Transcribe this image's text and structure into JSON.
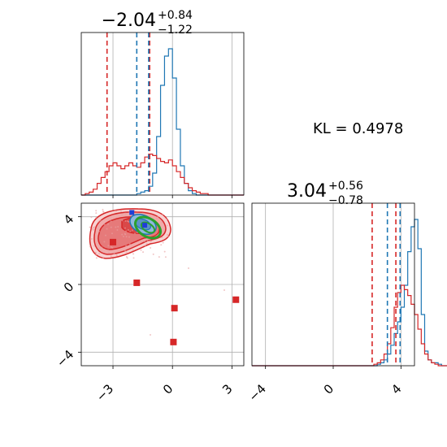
{
  "colors": {
    "blue": "#1f77b4",
    "red": "#d62728",
    "green": "#2ca02c",
    "frame": "#000000",
    "grid": "#b0b0b0"
  },
  "kl_label": "KL = 0.4978",
  "chart_data": [
    {
      "type": "histogram",
      "panel": "top-left",
      "title": {
        "main": "−2.04",
        "sup": "+0.84",
        "sub": "−1.22"
      },
      "xlim": [
        -4.6,
        3.6
      ],
      "grid": true,
      "bin_edges_start": -4.6,
      "bin_width": 0.2,
      "series": [
        {
          "name": "",
          "color": "blue",
          "values": [
            0,
            0,
            0,
            0,
            0,
            0,
            0,
            0,
            0,
            0,
            0,
            0,
            0,
            0,
            0.01,
            0.02,
            0.03,
            0.06,
            0.15,
            0.4,
            0.75,
            0.95,
            1.0,
            0.8,
            0.45,
            0.2,
            0.08,
            0.03,
            0.01,
            0,
            0,
            0,
            0,
            0,
            0,
            0,
            0,
            0,
            0,
            0,
            0
          ]
        },
        {
          "name": "",
          "color": "red",
          "values": [
            0,
            0.01,
            0.02,
            0.04,
            0.08,
            0.12,
            0.16,
            0.2,
            0.22,
            0.2,
            0.18,
            0.2,
            0.22,
            0.2,
            0.19,
            0.22,
            0.26,
            0.28,
            0.27,
            0.25,
            0.23,
            0.22,
            0.24,
            0.2,
            0.16,
            0.12,
            0.08,
            0.05,
            0.03,
            0.02,
            0.01,
            0.01,
            0,
            0,
            0,
            0,
            0,
            0,
            0,
            0,
            0
          ]
        }
      ],
      "quantile_lines": [
        {
          "color": "red",
          "x": -3.3
        },
        {
          "color": "blue",
          "x": -1.8
        },
        {
          "color": "red",
          "x": -1.15
        },
        {
          "color": "blue",
          "x": -1.2
        }
      ]
    },
    {
      "type": "scatter-contour",
      "panel": "bottom-left",
      "xlim": [
        -4.6,
        3.6
      ],
      "ylim": [
        -4.8,
        4.8
      ],
      "x_ticks": [
        -3,
        0,
        3
      ],
      "x_tick_labels": [
        "−3",
        "0",
        "3"
      ],
      "y_ticks": [
        -4,
        0,
        4
      ],
      "y_tick_labels": [
        "−4",
        "0",
        "4"
      ],
      "grid": true,
      "red_markers": [
        {
          "x": -3.0,
          "y": 2.5
        },
        {
          "x": -1.8,
          "y": 0.1
        },
        {
          "x": 0.1,
          "y": -1.4
        },
        {
          "x": 0.05,
          "y": -3.4
        },
        {
          "x": 3.2,
          "y": -0.9
        }
      ],
      "blue_markers": [
        {
          "x": -1.4,
          "y": 3.5
        },
        {
          "x": -2.05,
          "y": 4.25
        }
      ]
    },
    {
      "type": "histogram",
      "panel": "bottom-right",
      "title": {
        "main": "3.04",
        "sup": "+0.56",
        "sub": "−0.78"
      },
      "xlim": [
        -4.8,
        4.8
      ],
      "x_ticks": [
        -4,
        0,
        4
      ],
      "x_tick_labels": [
        "−4",
        "0",
        "4"
      ],
      "grid": true,
      "bin_edges_start": -4.8,
      "bin_width": 0.2,
      "series": [
        {
          "name": "",
          "color": "blue",
          "values": [
            0,
            0,
            0,
            0,
            0,
            0,
            0,
            0,
            0,
            0,
            0,
            0,
            0,
            0,
            0,
            0,
            0,
            0,
            0,
            0,
            0,
            0,
            0,
            0,
            0,
            0,
            0,
            0,
            0,
            0,
            0,
            0,
            0,
            0,
            0,
            0,
            0,
            0.01,
            0.02,
            0.04,
            0.08,
            0.14,
            0.22,
            0.3,
            0.4,
            0.55,
            0.78,
            0.95,
            1.0,
            0.8,
            0.35,
            0.1,
            0.04,
            0.02,
            0.02,
            0.01,
            0,
            0
          ]
        },
        {
          "name": "",
          "color": "red",
          "values": [
            0,
            0,
            0,
            0,
            0,
            0,
            0,
            0,
            0,
            0,
            0,
            0,
            0,
            0,
            0,
            0,
            0,
            0,
            0,
            0,
            0,
            0,
            0,
            0,
            0,
            0,
            0,
            0,
            0,
            0,
            0,
            0,
            0,
            0,
            0,
            0,
            0.01,
            0.02,
            0.04,
            0.08,
            0.15,
            0.26,
            0.4,
            0.5,
            0.55,
            0.52,
            0.48,
            0.42,
            0.35,
            0.25,
            0.15,
            0.08,
            0.04,
            0.02,
            0.01,
            0,
            0,
            0
          ]
        }
      ],
      "quantile_lines": [
        {
          "color": "red",
          "x": 2.3
        },
        {
          "color": "blue",
          "x": 3.2
        },
        {
          "color": "red",
          "x": 3.7
        },
        {
          "color": "blue",
          "x": 3.95
        }
      ]
    }
  ]
}
